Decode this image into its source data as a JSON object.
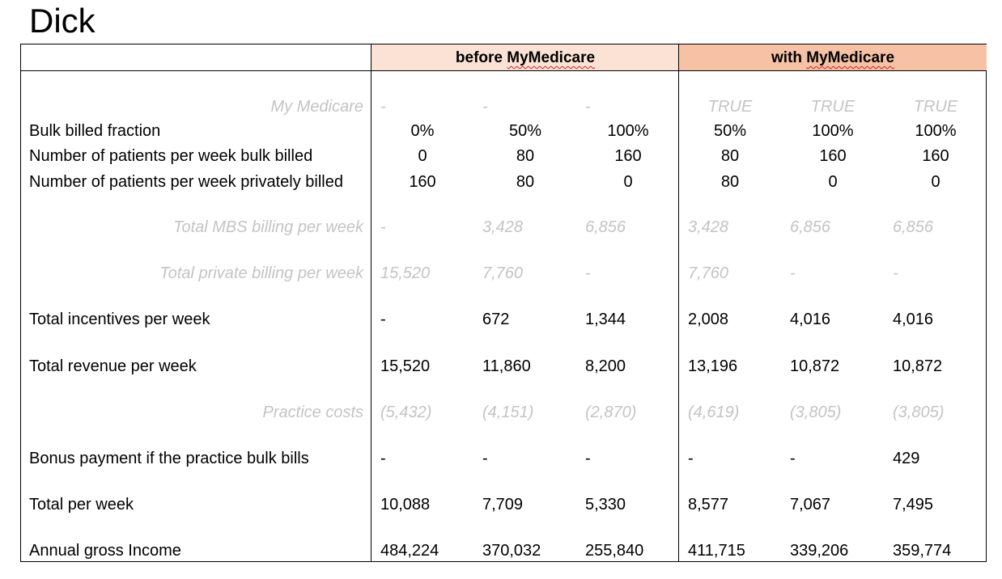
{
  "title": "Dick",
  "headers": {
    "before_prefix": "before ",
    "before_brand": "MyMedicare",
    "with_prefix": "with ",
    "with_brand": "MyMedicare"
  },
  "rows": [
    {
      "label": "My Medicare",
      "style": "italic",
      "values": [
        "-",
        "-",
        "-",
        "TRUE",
        "TRUE",
        "TRUE"
      ]
    },
    {
      "label": "Bulk billed fraction",
      "style": "normal",
      "values": [
        "0%",
        "50%",
        "100%",
        "50%",
        "100%",
        "100%"
      ]
    },
    {
      "label": "Number of patients per week bulk billed",
      "style": "normal",
      "values": [
        "0",
        "80",
        "160",
        "80",
        "160",
        "160"
      ]
    },
    {
      "label": "Number of patients per week privately billed",
      "style": "normal",
      "values": [
        "160",
        "80",
        "0",
        "80",
        "0",
        "0"
      ]
    },
    {
      "label": "Total MBS billing per week",
      "style": "italic",
      "values": [
        "-",
        "3,428",
        "6,856",
        "3,428",
        "6,856",
        "6,856"
      ]
    },
    {
      "label": "Total private billing per week",
      "style": "italic",
      "values": [
        "15,520",
        "7,760",
        "-",
        "7,760",
        "-",
        "-"
      ]
    },
    {
      "label": "Total incentives per week",
      "style": "normal",
      "values": [
        "-",
        "672",
        "1,344",
        "2,008",
        "4,016",
        "4,016"
      ]
    },
    {
      "label": "Total revenue per week",
      "style": "normal",
      "values": [
        "15,520",
        "11,860",
        "8,200",
        "13,196",
        "10,872",
        "10,872"
      ]
    },
    {
      "label": "Practice costs",
      "style": "italic",
      "values": [
        "(5,432)",
        "(4,151)",
        "(2,870)",
        "(4,619)",
        "(3,805)",
        "(3,805)"
      ]
    },
    {
      "label": "Bonus payment if the practice bulk bills",
      "style": "normal",
      "values": [
        "-",
        "-",
        "-",
        "-",
        "-",
        "429"
      ]
    },
    {
      "label": "Total per week",
      "style": "normal",
      "values": [
        "10,088",
        "7,709",
        "5,330",
        "8,577",
        "7,067",
        "7,495"
      ]
    },
    {
      "label": "Annual gross Income",
      "style": "normal",
      "values": [
        "484,224",
        "370,032",
        "255,840",
        "411,715",
        "339,206",
        "359,774"
      ]
    }
  ]
}
